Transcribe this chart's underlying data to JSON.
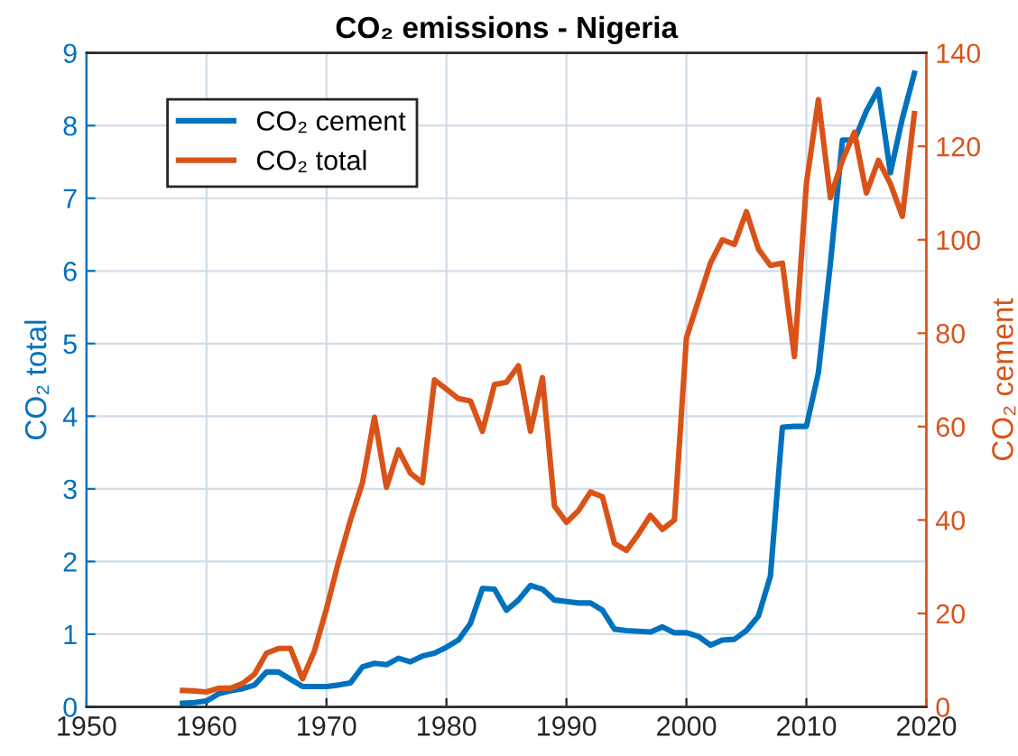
{
  "chart_data": {
    "type": "line",
    "title": "CO₂ emissions - Nigeria",
    "ylabel": "CO₂ total",
    "y2label": "CO₂ cement",
    "x": [
      1958,
      1959,
      1960,
      1961,
      1962,
      1963,
      1964,
      1965,
      1966,
      1967,
      1968,
      1969,
      1970,
      1971,
      1972,
      1973,
      1974,
      1975,
      1976,
      1977,
      1978,
      1979,
      1980,
      1981,
      1982,
      1983,
      1984,
      1985,
      1986,
      1987,
      1988,
      1989,
      1990,
      1991,
      1992,
      1993,
      1994,
      1995,
      1996,
      1997,
      1998,
      1999,
      2000,
      2001,
      2002,
      2003,
      2004,
      2005,
      2006,
      2007,
      2008,
      2009,
      2010,
      2011,
      2012,
      2013,
      2014,
      2015,
      2016,
      2017,
      2018,
      2019
    ],
    "series": [
      {
        "name": "CO₂ cement",
        "color": "#0072bd",
        "values": [
          0.05,
          0.06,
          0.08,
          0.18,
          0.22,
          0.25,
          0.3,
          0.48,
          0.48,
          0.38,
          0.28,
          0.28,
          0.28,
          0.3,
          0.33,
          0.55,
          0.6,
          0.58,
          0.67,
          0.62,
          0.7,
          0.74,
          0.82,
          0.92,
          1.15,
          1.63,
          1.62,
          1.33,
          1.47,
          1.67,
          1.62,
          1.47,
          1.45,
          1.43,
          1.43,
          1.33,
          1.07,
          1.05,
          1.04,
          1.03,
          1.1,
          1.02,
          1.02,
          0.97,
          0.85,
          0.92,
          0.93,
          1.05,
          1.25,
          1.8,
          3.85,
          3.86,
          3.86,
          4.6,
          6.1,
          7.8,
          7.8,
          8.2,
          8.5,
          7.35,
          8.1,
          8.72
        ]
      },
      {
        "name": "CO₂ total",
        "color": "#d95319",
        "axis": "y2",
        "values": [
          3.5,
          3.4,
          3.2,
          4,
          4,
          5,
          7,
          11.5,
          12.5,
          12.5,
          6,
          12,
          21,
          31,
          40,
          48,
          62,
          47,
          55,
          50,
          48,
          70,
          68,
          66,
          65.5,
          59,
          69,
          69.5,
          73,
          59,
          70.5,
          43,
          39.5,
          42,
          46,
          45,
          35,
          33.5,
          37,
          41,
          38,
          40,
          79,
          87,
          95,
          100,
          99,
          106,
          98,
          94.5,
          95,
          75,
          112,
          130,
          109,
          117,
          123,
          110,
          117,
          112,
          105,
          127
        ]
      }
    ],
    "xlim": [
      1950,
      2020
    ],
    "xticks": [
      1950,
      1960,
      1970,
      1980,
      1990,
      2000,
      2010,
      2020
    ],
    "ylim": [
      0,
      9
    ],
    "yticks": [
      0,
      1,
      2,
      3,
      4,
      5,
      6,
      7,
      8,
      9
    ],
    "y2lim": [
      0,
      140
    ],
    "y2ticks": [
      0,
      20,
      40,
      60,
      80,
      100,
      120,
      140
    ],
    "grid": true,
    "legend": "top left",
    "line_style": "solid",
    "marker": "none"
  }
}
